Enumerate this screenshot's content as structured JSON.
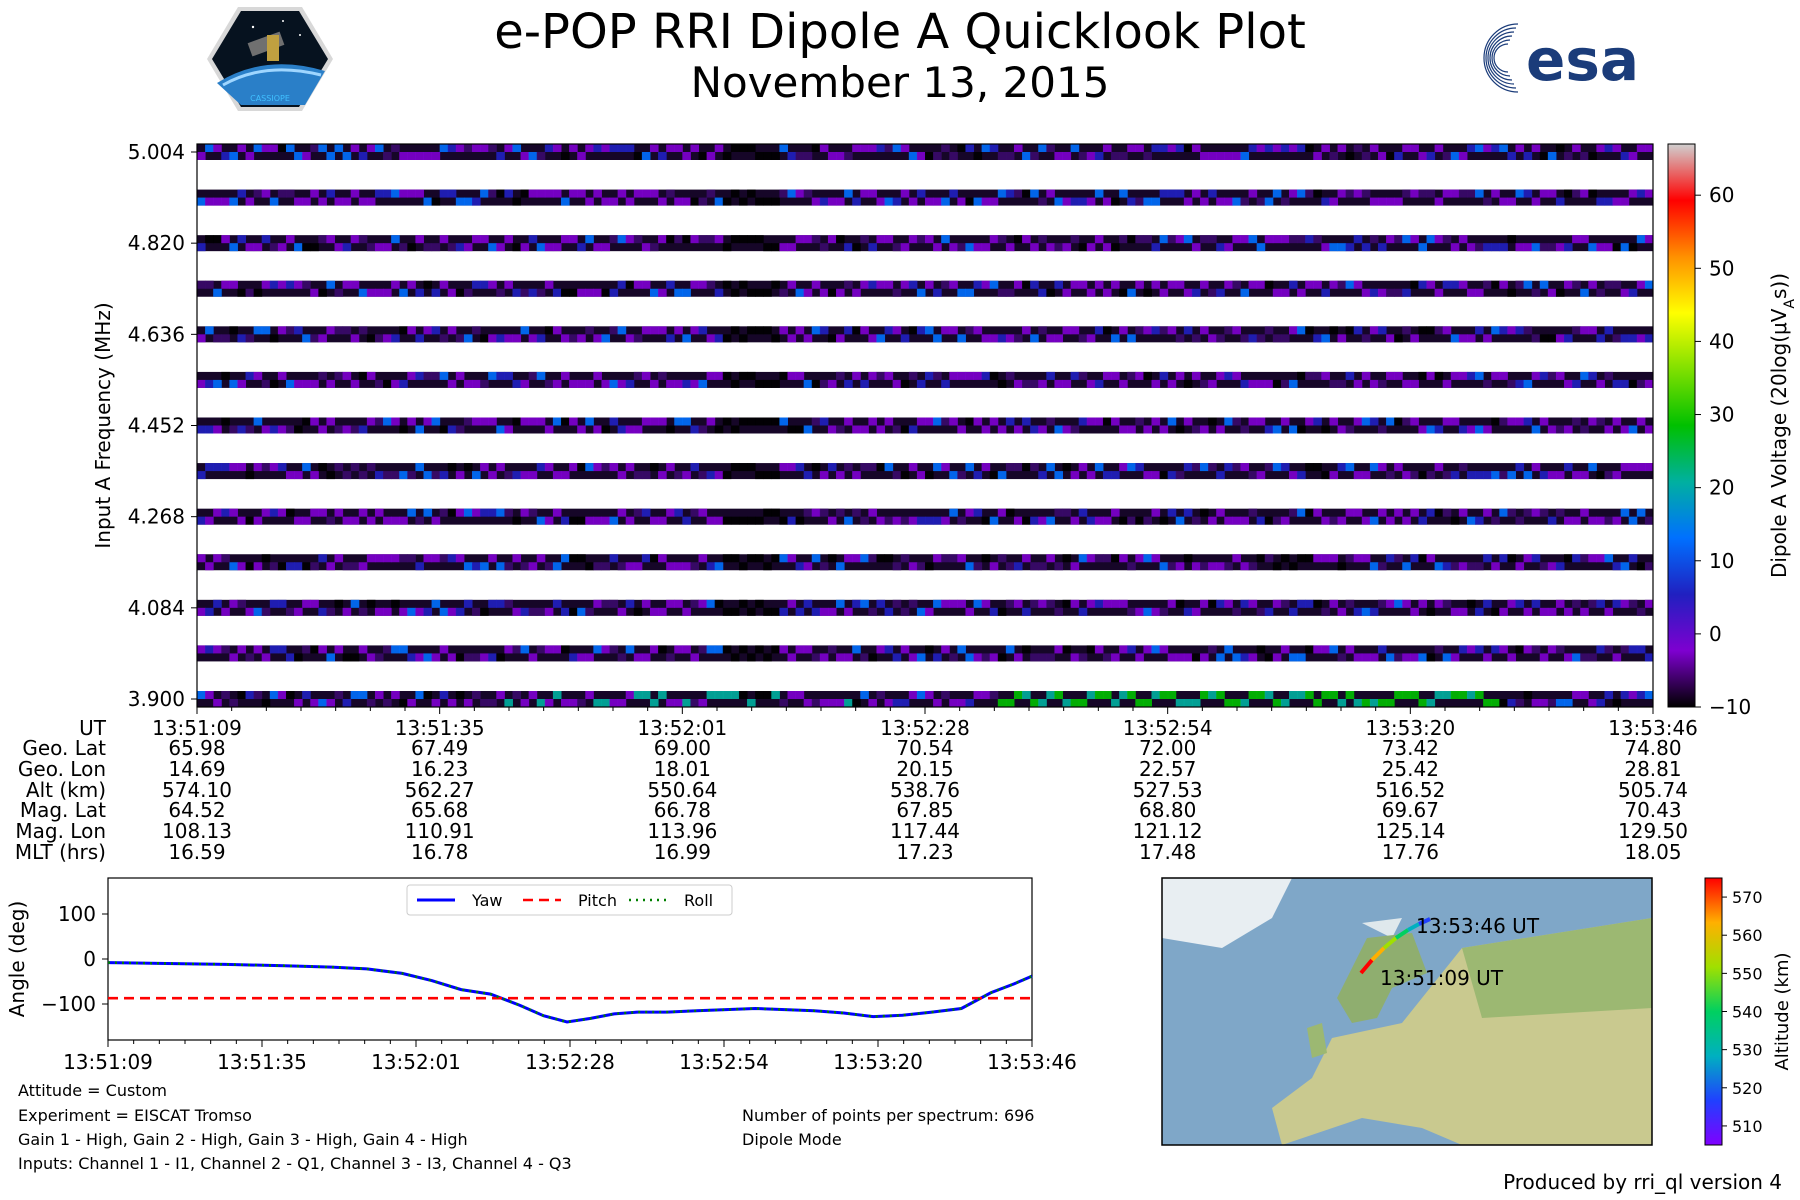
{
  "header": {
    "title": "e-POP RRI Dipole A Quicklook Plot",
    "date": "November 13, 2015",
    "left_logo_icon": "cassiope-mission-hexagon-logo",
    "left_logo_text": "CASSIOPE",
    "right_logo_icon": "esa-logo",
    "right_logo_text": "esa"
  },
  "spectrogram": {
    "type": "heatmap",
    "ylabel": "Input A Frequency (MHz)",
    "yticks": [
      "5.004",
      "4.820",
      "4.636",
      "4.452",
      "4.268",
      "4.084",
      "3.900"
    ],
    "ylim": [
      3.9,
      5.004
    ],
    "n_bands": 13,
    "colorbar_label": "Dipole A Voltage (20log(μV",
    "colorbar_label_sub": "A",
    "colorbar_label_end": "s))",
    "colorbar_ticks": [
      "60",
      "50",
      "40",
      "30",
      "20",
      "10",
      "0",
      "−10"
    ],
    "colorbar_range": [
      -10,
      67
    ],
    "colormap": [
      "#000000",
      "#7e00d0",
      "#2020c0",
      "#0070ff",
      "#00b0a0",
      "#00c000",
      "#80e000",
      "#ffff00",
      "#ff9000",
      "#ff0000",
      "#d0d0d0"
    ]
  },
  "ephemeris": {
    "row_labels": [
      "UT",
      "Geo. Lat",
      "Geo. Lon",
      "Alt (km)",
      "Mag. Lat",
      "Mag. Lon",
      "MLT (hrs)"
    ],
    "columns": [
      {
        "ut": "13:51:09",
        "values": [
          "65.98",
          "14.69",
          "574.10",
          "64.52",
          "108.13",
          "16.59"
        ]
      },
      {
        "ut": "13:51:35",
        "values": [
          "67.49",
          "16.23",
          "562.27",
          "65.68",
          "110.91",
          "16.78"
        ]
      },
      {
        "ut": "13:52:01",
        "values": [
          "69.00",
          "18.01",
          "550.64",
          "66.78",
          "113.96",
          "16.99"
        ]
      },
      {
        "ut": "13:52:28",
        "values": [
          "70.54",
          "20.15",
          "538.76",
          "67.85",
          "117.44",
          "17.23"
        ]
      },
      {
        "ut": "13:52:54",
        "values": [
          "72.00",
          "22.57",
          "527.53",
          "68.80",
          "121.12",
          "17.48"
        ]
      },
      {
        "ut": "13:53:20",
        "values": [
          "73.42",
          "25.42",
          "516.52",
          "69.67",
          "125.14",
          "17.76"
        ]
      },
      {
        "ut": "13:53:46",
        "values": [
          "74.80",
          "28.81",
          "505.74",
          "70.43",
          "129.50",
          "18.05"
        ]
      }
    ]
  },
  "chart_data": {
    "type": "line",
    "ylabel": "Angle (deg)",
    "xticks": [
      "13:51:09",
      "13:51:35",
      "13:52:01",
      "13:52:28",
      "13:52:54",
      "13:53:20",
      "13:53:46"
    ],
    "yticks": [
      "100",
      "0",
      "−100"
    ],
    "ylim": [
      -180,
      180
    ],
    "xlim_seconds": [
      0,
      157
    ],
    "legend": [
      "Yaw",
      "Pitch",
      "Roll"
    ],
    "series": [
      {
        "name": "Yaw",
        "color": "#0000ff",
        "style": "solid",
        "x": [
          0,
          10,
          20,
          30,
          38,
          44,
          50,
          55,
          60,
          65,
          70,
          74,
          78,
          82,
          86,
          90,
          95,
          100,
          110,
          120,
          125,
          130,
          135,
          140,
          145,
          150,
          154,
          157
        ],
        "y": [
          -8,
          -10,
          -12,
          -15,
          -18,
          -22,
          -32,
          -48,
          -68,
          -78,
          -103,
          -126,
          -140,
          -132,
          -122,
          -118,
          -118,
          -115,
          -110,
          -115,
          -120,
          -128,
          -125,
          -118,
          -110,
          -75,
          -55,
          -38
        ]
      },
      {
        "name": "Pitch",
        "color": "#ff0000",
        "style": "dashed",
        "x": [
          0,
          157
        ],
        "y": [
          -87,
          -87
        ]
      },
      {
        "name": "Roll",
        "color": "#008000",
        "style": "dotted",
        "x": [
          0,
          10,
          20,
          30,
          38,
          44,
          50,
          55,
          60,
          65,
          70,
          74,
          78,
          82,
          86,
          90,
          95,
          100,
          110,
          120,
          125,
          130,
          135,
          140,
          145,
          150,
          154,
          157
        ],
        "y": [
          -8,
          -10,
          -12,
          -15,
          -18,
          -22,
          -32,
          -48,
          -68,
          -78,
          -103,
          -126,
          -140,
          -132,
          -122,
          -118,
          -118,
          -115,
          -110,
          -115,
          -120,
          -128,
          -125,
          -118,
          -110,
          -75,
          -55,
          -38
        ]
      }
    ]
  },
  "map": {
    "start_label": "13:51:09 UT",
    "end_label": "13:53:46 UT",
    "colorbar_label": "Altitude (km)",
    "colorbar_ticks": [
      "570",
      "560",
      "550",
      "540",
      "530",
      "520",
      "510"
    ],
    "colorbar_range": [
      505,
      575
    ],
    "colormap": [
      "#8000ff",
      "#2040ff",
      "#00b0c0",
      "#00d060",
      "#a0e000",
      "#ffb000",
      "#ff0000"
    ],
    "ocean_color": "#7fa7c8",
    "land_color": "#c9c98f"
  },
  "info": {
    "attitude": "Attitude = Custom",
    "experiment": "Experiment = EISCAT Tromso",
    "gains": "Gain 1 - High, Gain 2 - High, Gain 3 - High, Gain 4 - High",
    "inputs": "Inputs: Channel 1 - I1, Channel 2 - Q1, Channel 3 - I3, Channel 4 - Q3",
    "points": "Number of points per spectrum: 696",
    "mode": "Dipole Mode"
  },
  "footer": "Produced by rri_ql version 4"
}
